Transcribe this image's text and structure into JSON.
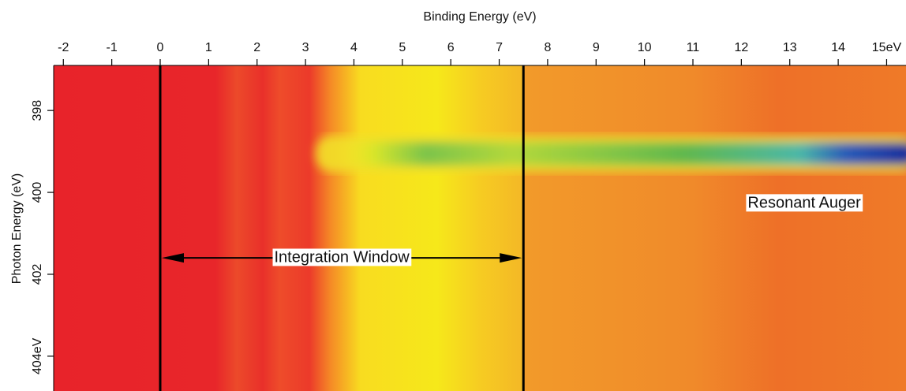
{
  "chart_data": {
    "type": "heatmap",
    "x_label": "Binding Energy (eV)",
    "y_label": "Photon Energy (eV)",
    "xlim": [
      -2.2,
      15.4
    ],
    "xticks": [
      -2,
      -1,
      0,
      1,
      2,
      3,
      4,
      5,
      6,
      7,
      8,
      9,
      10,
      11,
      12,
      13,
      14,
      {
        "value": 15,
        "label": "15eV"
      }
    ],
    "ylim": [
      396.9,
      404.85
    ],
    "yticks": [
      398,
      400,
      402,
      {
        "value": 404,
        "label": "404eV"
      }
    ],
    "vlines": [
      0,
      7.5
    ],
    "arrow": {
      "x": [
        0,
        7.5
      ],
      "y": 401.6,
      "label": "Integration Window"
    },
    "annotations": [
      {
        "text": "Resonant Auger",
        "x": 13.3,
        "y": 400.27
      }
    ]
  }
}
